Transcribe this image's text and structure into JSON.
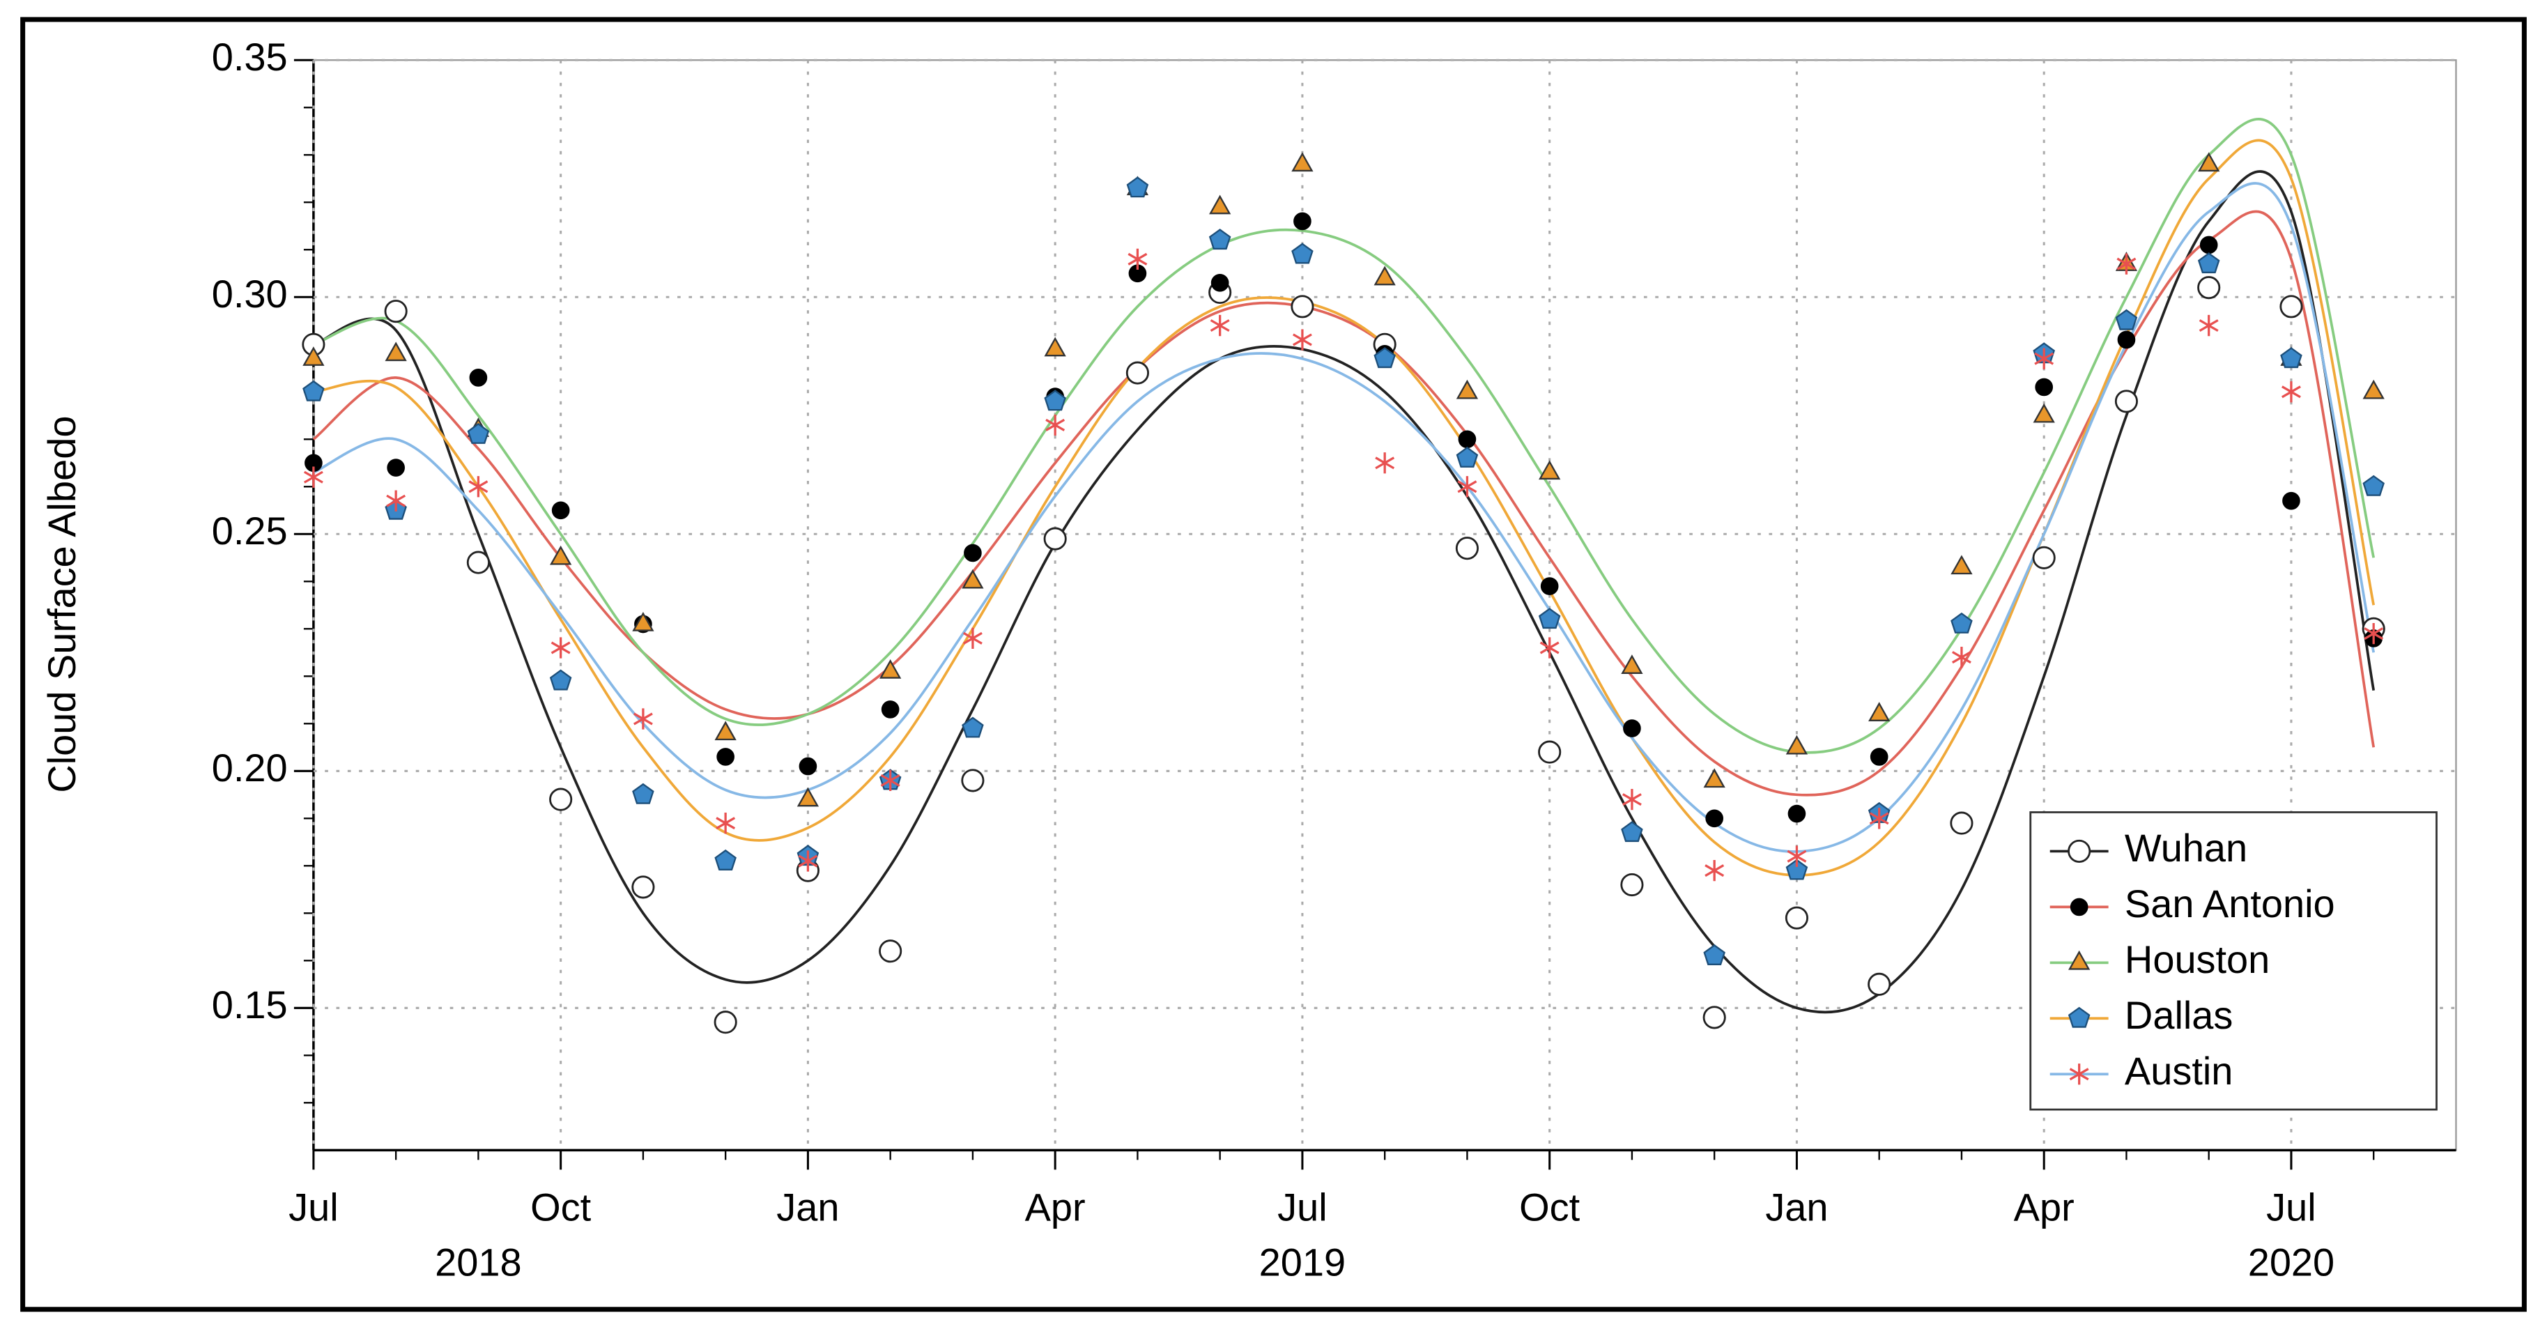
{
  "chart_data": {
    "type": "scatter",
    "ylabel": "Cloud Surface Albedo",
    "x": [
      "2018-07",
      "2018-08",
      "2018-09",
      "2018-10",
      "2018-11",
      "2018-12",
      "2019-01",
      "2019-02",
      "2019-03",
      "2019-04",
      "2019-05",
      "2019-06",
      "2019-07",
      "2019-08",
      "2019-09",
      "2019-10",
      "2019-11",
      "2019-12",
      "2020-01",
      "2020-02",
      "2020-03",
      "2020-04",
      "2020-05",
      "2020-06",
      "2020-07",
      "2020-08"
    ],
    "xlim": [
      "2018-07",
      "2020-09"
    ],
    "xticks": [
      {
        "value": "2018-07",
        "label": "Jul"
      },
      {
        "value": "2018-10",
        "label": "Oct"
      },
      {
        "value": "2019-01",
        "label": "Jan"
      },
      {
        "value": "2019-04",
        "label": "Apr"
      },
      {
        "value": "2019-07",
        "label": "Jul"
      },
      {
        "value": "2019-10",
        "label": "Oct"
      },
      {
        "value": "2020-01",
        "label": "Jan"
      },
      {
        "value": "2020-04",
        "label": "Apr"
      },
      {
        "value": "2020-07",
        "label": "Jul"
      }
    ],
    "xyears": [
      {
        "value": "2018-09",
        "label": "2018"
      },
      {
        "value": "2019-07",
        "label": "2019"
      },
      {
        "value": "2020-07",
        "label": "2020"
      }
    ],
    "ylim": [
      0.12,
      0.35
    ],
    "yticks": [
      0.15,
      {
        "value": 0.2,
        "label": "0.20"
      },
      0.25,
      {
        "value": 0.3,
        "label": "0.30"
      },
      0.35
    ],
    "yminorticks": [
      0.13,
      0.14,
      0.16,
      0.17,
      0.18,
      0.19,
      0.21,
      0.22,
      0.23,
      0.24,
      0.26,
      0.27,
      0.28,
      0.29,
      0.31,
      0.32,
      0.33,
      0.34
    ],
    "grid": true,
    "legend": "lower right",
    "series": [
      {
        "name": "Wuhan",
        "color": "#222222",
        "marker": "circle",
        "marker_color": "#ffffff",
        "values": [
          0.29,
          0.297,
          0.244,
          0.194,
          0.1755,
          0.147,
          0.179,
          0.162,
          0.198,
          0.249,
          0.284,
          0.301,
          0.298,
          0.29,
          0.247,
          0.204,
          0.176,
          0.148,
          0.169,
          0.155,
          0.189,
          0.245,
          0.278,
          0.302,
          0.298,
          0.23
        ],
        "fit": [
          0.29,
          0.293,
          0.25,
          0.205,
          0.17,
          0.156,
          0.16,
          0.18,
          0.213,
          0.248,
          0.272,
          0.287,
          0.289,
          0.28,
          0.258,
          0.225,
          0.19,
          0.163,
          0.15,
          0.153,
          0.175,
          0.22,
          0.275,
          0.316,
          0.318,
          0.217
        ]
      },
      {
        "name": "San Antonio",
        "color": "#e0645a",
        "marker": "dot",
        "marker_color": "#000000",
        "values": [
          0.265,
          0.264,
          0.283,
          0.255,
          0.231,
          0.203,
          0.201,
          0.213,
          0.246,
          0.279,
          0.305,
          0.303,
          0.316,
          0.288,
          0.27,
          0.239,
          0.209,
          0.19,
          0.191,
          0.203,
          0.231,
          0.281,
          0.291,
          0.311,
          0.257,
          0.228
        ],
        "fit": [
          0.27,
          0.283,
          0.268,
          0.245,
          0.225,
          0.213,
          0.212,
          0.222,
          0.242,
          0.265,
          0.285,
          0.297,
          0.298,
          0.29,
          0.271,
          0.245,
          0.22,
          0.202,
          0.195,
          0.2,
          0.222,
          0.255,
          0.289,
          0.312,
          0.308,
          0.205
        ]
      },
      {
        "name": "Houston",
        "color": "#86cc80",
        "marker": "triangle",
        "marker_color": "#e8962a",
        "values": [
          0.287,
          0.288,
          0.272,
          0.245,
          0.231,
          0.208,
          0.194,
          0.221,
          0.24,
          0.289,
          0.323,
          0.319,
          0.328,
          0.304,
          0.28,
          0.263,
          0.222,
          0.198,
          0.205,
          0.212,
          0.243,
          0.275,
          0.307,
          0.328,
          0.287,
          0.28
        ],
        "fit": [
          0.29,
          0.295,
          0.275,
          0.25,
          0.225,
          0.211,
          0.212,
          0.225,
          0.248,
          0.275,
          0.298,
          0.311,
          0.314,
          0.307,
          0.287,
          0.26,
          0.232,
          0.212,
          0.204,
          0.209,
          0.23,
          0.263,
          0.3,
          0.33,
          0.33,
          0.245
        ]
      },
      {
        "name": "Dallas",
        "color": "#f0a838",
        "marker": "pentagon",
        "marker_color": "#3a87c8",
        "values": [
          0.28,
          0.255,
          0.271,
          0.219,
          0.195,
          0.181,
          0.182,
          0.198,
          0.209,
          0.278,
          0.323,
          0.312,
          0.309,
          0.287,
          0.266,
          0.232,
          0.187,
          0.161,
          0.179,
          0.191,
          0.231,
          0.288,
          0.295,
          0.307,
          0.287,
          0.26
        ],
        "fit": [
          0.28,
          0.281,
          0.26,
          0.232,
          0.205,
          0.187,
          0.188,
          0.203,
          0.23,
          0.26,
          0.285,
          0.298,
          0.299,
          0.29,
          0.268,
          0.238,
          0.207,
          0.185,
          0.178,
          0.185,
          0.21,
          0.25,
          0.292,
          0.325,
          0.325,
          0.235
        ]
      },
      {
        "name": "Austin",
        "color": "#86b8e6",
        "marker": "star",
        "marker_color": "#e85050",
        "values": [
          0.262,
          0.257,
          0.26,
          0.226,
          0.211,
          0.189,
          0.181,
          0.198,
          0.228,
          0.273,
          0.308,
          0.294,
          0.291,
          0.265,
          0.26,
          0.226,
          0.194,
          0.179,
          0.182,
          0.19,
          0.224,
          0.287,
          0.307,
          0.294,
          0.28,
          0.229
        ],
        "fit": [
          0.263,
          0.27,
          0.255,
          0.233,
          0.21,
          0.196,
          0.196,
          0.208,
          0.232,
          0.258,
          0.278,
          0.287,
          0.287,
          0.278,
          0.26,
          0.234,
          0.207,
          0.189,
          0.183,
          0.19,
          0.213,
          0.25,
          0.29,
          0.318,
          0.315,
          0.225
        ]
      }
    ]
  }
}
